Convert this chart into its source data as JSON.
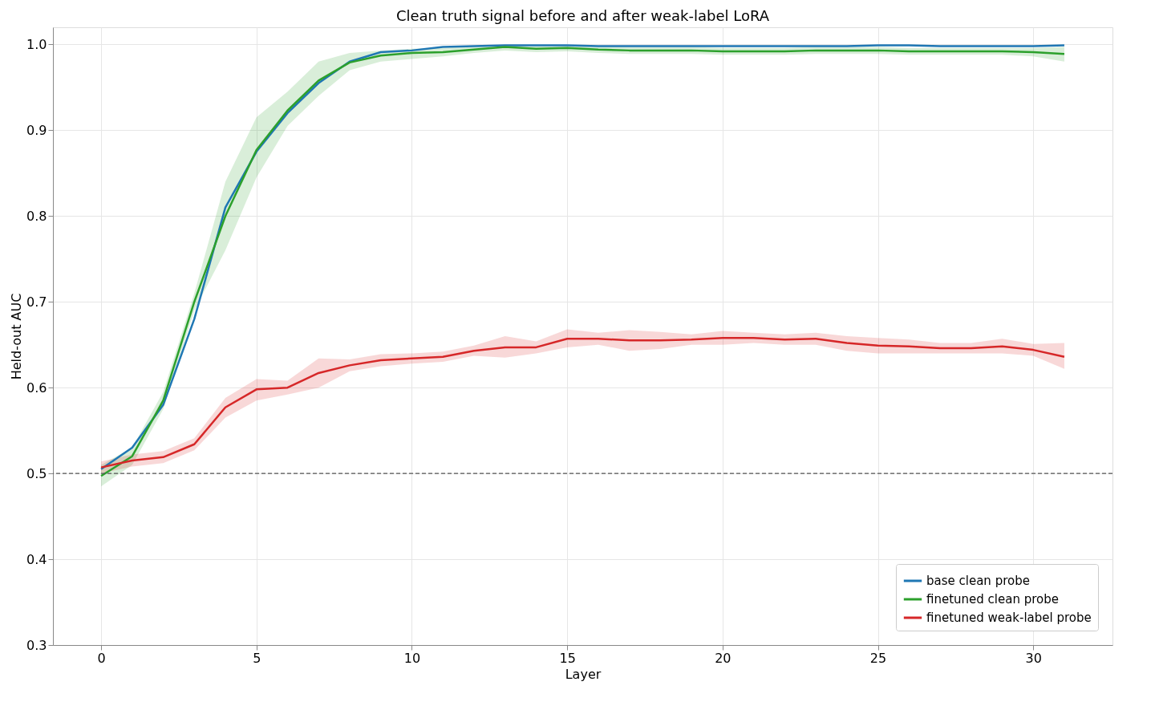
{
  "chart_data": {
    "type": "line",
    "title": "Clean truth signal before and after weak-label LoRA",
    "xlabel": "Layer",
    "ylabel": "Held-out AUC",
    "x": [
      0,
      1,
      2,
      3,
      4,
      5,
      6,
      7,
      8,
      9,
      10,
      11,
      12,
      13,
      14,
      15,
      16,
      17,
      18,
      19,
      20,
      21,
      22,
      23,
      24,
      25,
      26,
      27,
      28,
      29,
      30,
      31
    ],
    "xlim": [
      -1.55,
      32.55
    ],
    "xticks": [
      0,
      5,
      10,
      15,
      20,
      25,
      30
    ],
    "ylim": [
      0.3,
      1.02
    ],
    "yticks": [
      0.3,
      0.4,
      0.5,
      0.6,
      0.7,
      0.8,
      0.9,
      {
        "value": 1.0,
        "label": "1.0"
      }
    ],
    "grid": true,
    "legend": "bottom right",
    "line_style": "solid",
    "series": [
      {
        "name": "base clean probe",
        "color": "#1f77b4",
        "values": [
          0.505,
          0.53,
          0.58,
          0.68,
          0.81,
          0.875,
          0.92,
          0.955,
          0.98,
          0.991,
          0.993,
          0.997,
          0.998,
          0.999,
          0.999,
          0.999,
          0.998,
          0.998,
          0.998,
          0.998,
          0.998,
          0.998,
          0.998,
          0.998,
          0.998,
          0.999,
          0.999,
          0.998,
          0.998,
          0.998,
          0.998,
          0.999
        ]
      },
      {
        "name": "finetuned clean probe",
        "color": "#2ca02c",
        "values": [
          0.497,
          0.52,
          0.585,
          0.7,
          0.8,
          0.877,
          0.923,
          0.958,
          0.979,
          0.987,
          0.99,
          0.991,
          0.994,
          0.997,
          0.995,
          0.996,
          0.994,
          0.993,
          0.993,
          0.993,
          0.992,
          0.992,
          0.992,
          0.993,
          0.993,
          0.993,
          0.992,
          0.992,
          0.992,
          0.992,
          0.991,
          0.989
        ],
        "lower": [
          0.485,
          0.51,
          0.575,
          0.69,
          0.76,
          0.845,
          0.905,
          0.94,
          0.97,
          0.98,
          0.983,
          0.986,
          0.99,
          0.993,
          0.991,
          0.992,
          0.99,
          0.989,
          0.989,
          0.989,
          0.988,
          0.988,
          0.988,
          0.989,
          0.989,
          0.989,
          0.988,
          0.988,
          0.988,
          0.988,
          0.986,
          0.98
        ],
        "upper": [
          0.51,
          0.53,
          0.595,
          0.71,
          0.84,
          0.915,
          0.945,
          0.98,
          0.99,
          0.993,
          0.995,
          0.996,
          0.998,
          0.999,
          0.998,
          0.999,
          0.998,
          0.997,
          0.997,
          0.997,
          0.996,
          0.996,
          0.996,
          0.997,
          0.997,
          0.997,
          0.996,
          0.996,
          0.996,
          0.996,
          0.996,
          0.997
        ]
      },
      {
        "name": "finetuned weak-label probe",
        "color": "#d62728",
        "values": [
          0.507,
          0.515,
          0.519,
          0.534,
          0.577,
          0.598,
          0.6,
          0.617,
          0.626,
          0.632,
          0.634,
          0.636,
          0.643,
          0.647,
          0.647,
          0.657,
          0.657,
          0.655,
          0.655,
          0.656,
          0.658,
          0.658,
          0.656,
          0.657,
          0.652,
          0.649,
          0.648,
          0.646,
          0.646,
          0.648,
          0.644,
          0.636
        ],
        "lower": [
          0.5,
          0.508,
          0.512,
          0.527,
          0.565,
          0.585,
          0.592,
          0.6,
          0.619,
          0.625,
          0.628,
          0.63,
          0.637,
          0.635,
          0.64,
          0.647,
          0.65,
          0.643,
          0.645,
          0.65,
          0.65,
          0.652,
          0.65,
          0.65,
          0.643,
          0.64,
          0.64,
          0.64,
          0.64,
          0.64,
          0.637,
          0.622
        ],
        "upper": [
          0.514,
          0.522,
          0.526,
          0.541,
          0.588,
          0.61,
          0.608,
          0.634,
          0.633,
          0.639,
          0.64,
          0.642,
          0.649,
          0.66,
          0.654,
          0.668,
          0.664,
          0.667,
          0.665,
          0.662,
          0.666,
          0.664,
          0.662,
          0.664,
          0.66,
          0.658,
          0.656,
          0.652,
          0.652,
          0.657,
          0.651,
          0.652
        ]
      }
    ],
    "ref_lines": [
      {
        "axis": "y",
        "value": 0.5,
        "color": "#555555",
        "line_style": "dashed"
      }
    ]
  }
}
